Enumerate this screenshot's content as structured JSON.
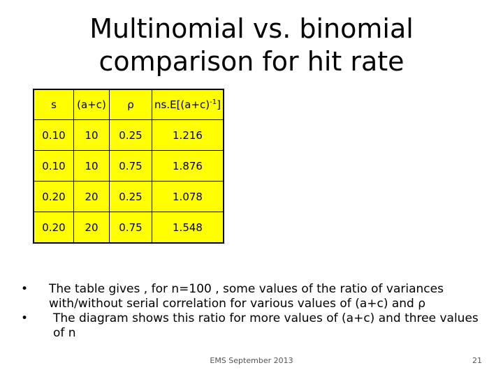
{
  "title": {
    "line1": "Multinomial vs. binomial",
    "line2": "comparison for hit rate"
  },
  "table": {
    "headers": {
      "s": "s",
      "ac": "(a+c)",
      "rho": "ρ",
      "col4_main": "ns.E[(a+c)",
      "col4_sup": "-1",
      "col4_end": "]"
    },
    "rows": [
      [
        "0.10",
        "10",
        "0.25",
        "1.216"
      ],
      [
        "0.10",
        "10",
        "0.75",
        "1.876"
      ],
      [
        "0.20",
        "20",
        "0.25",
        "1.078"
      ],
      [
        "0.20",
        "20",
        "0.75",
        "1.548"
      ]
    ]
  },
  "bullets": [
    "The table gives , for n=100 , some values of the ratio of variances with/without serial correlation for various values of (a+c) and ρ",
    "The diagram shows this ratio for more values of (a+c) and three values of n"
  ],
  "bullet_symbol": "•",
  "footer": {
    "center": "EMS September 2013",
    "page": "21"
  }
}
